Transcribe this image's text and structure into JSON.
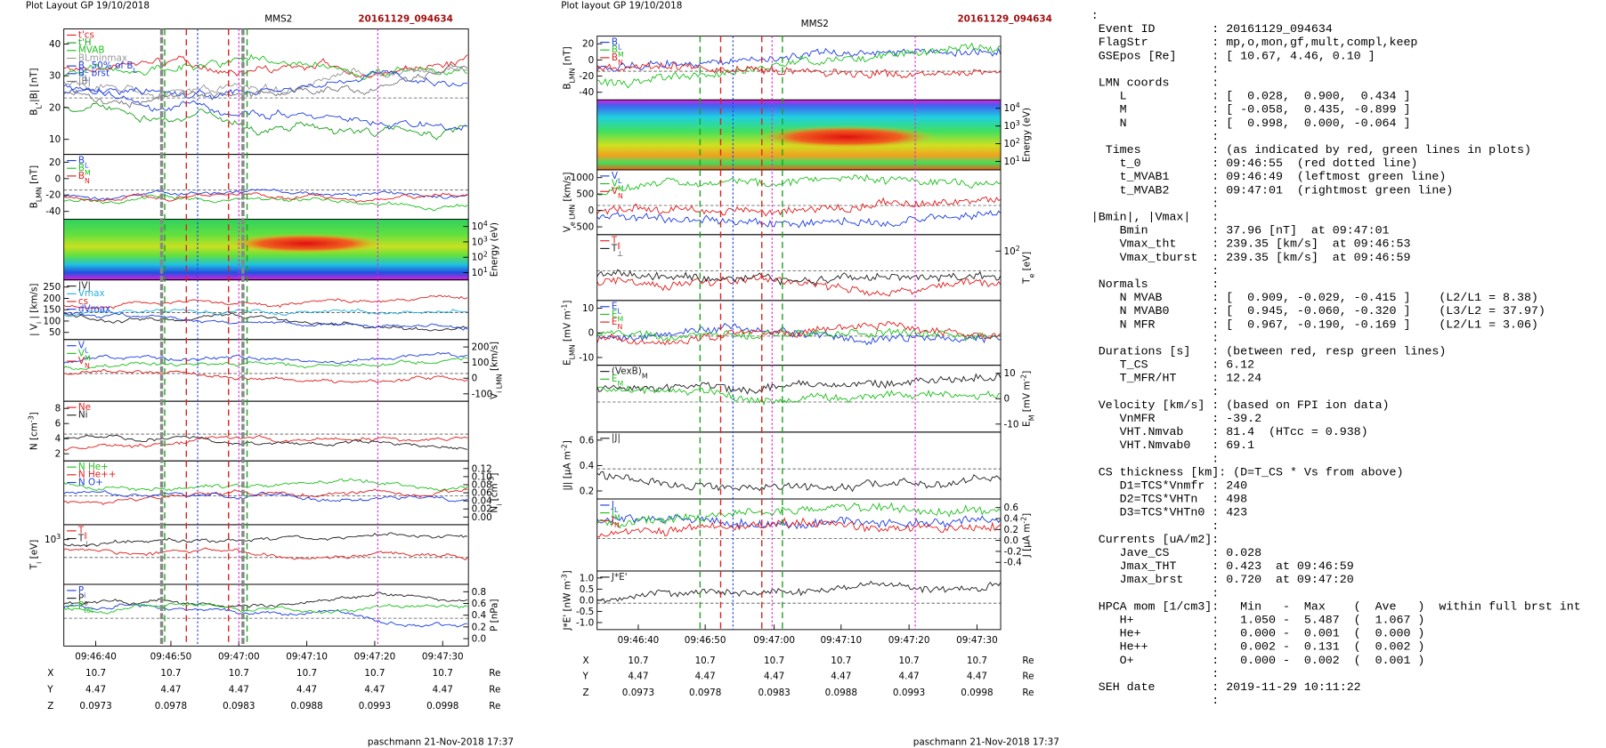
{
  "left": {
    "header": "Plot Layout GP 19/10/2018",
    "title": "MMS2",
    "event": "20161129_094634",
    "panels": [
      {
        "label": [
          "B",
          {
            "sub": "L"
          },
          ",|B| [nT]"
        ],
        "side": "left",
        "ticks": [
          "40",
          "30",
          "20",
          "10"
        ],
        "legend": [
          {
            "text": [
              "t'cs"
            ],
            "color": "#e02020"
          },
          {
            "text": [
              "t'H"
            ],
            "color": "#20a020"
          },
          {
            "text": [
              "MVAB"
            ],
            "color": "#20c020"
          },
          {
            "text": [
              "BLminmax"
            ],
            "color": "#999999"
          },
          {
            "text": [
              "B",
              {
                "sub": "L"
              },
              " 50% of B",
              {
                "sub": "L"
              }
            ],
            "color": "#2040e0"
          },
          {
            "text": [
              "B",
              {
                "sub": "L"
              },
              " brst"
            ],
            "color": "#2040e0"
          },
          {
            "text": [
              "|B|"
            ],
            "color": "#777777"
          }
        ]
      },
      {
        "label": [
          "B",
          {
            "sub": "LMN"
          },
          " [nT]"
        ],
        "side": "left",
        "ticks": [
          "20",
          "0",
          "-20",
          "-40"
        ],
        "legend": [
          {
            "text": [
              "B",
              {
                "sub": "L"
              }
            ],
            "color": "#2040e0"
          },
          {
            "text": [
              "B",
              {
                "sub": "M"
              }
            ],
            "color": "#20c020"
          },
          {
            "text": [
              "B",
              {
                "sub": "N"
              }
            ],
            "color": "#e02020"
          }
        ]
      },
      {
        "label": [
          "Energy (eV)"
        ],
        "side": "right",
        "kind": "spectrogram",
        "ticks": [
          [
            "10",
            {
              "sup": "4"
            }
          ],
          [
            "10",
            {
              "sup": "3"
            }
          ],
          [
            "10",
            {
              "sup": "2"
            }
          ],
          [
            "10",
            {
              "sup": "1"
            }
          ]
        ],
        "legend": []
      },
      {
        "label": [
          "| V",
          {
            "sub": "i"
          },
          " | [km/s]"
        ],
        "side": "left",
        "ticks": [
          "250",
          "200",
          "150",
          "100",
          "50"
        ],
        "legend": [
          {
            "text": [
              "|V|"
            ],
            "color": "#222222"
          },
          {
            "text": [
              "Vmax"
            ],
            "color": "#20b0e0"
          },
          {
            "text": [
              "cs"
            ],
            "color": "#e02020"
          },
          {
            "text": [
              "dVmax"
            ],
            "color": "#2040e0"
          }
        ]
      },
      {
        "label": [
          "V",
          {
            "sub": "i LMN"
          },
          " [km/s]"
        ],
        "side": "right",
        "ticks": [
          "200",
          "100",
          "0",
          "-100"
        ],
        "legend": [
          {
            "text": [
              "V",
              {
                "sub": "L"
              }
            ],
            "color": "#2040e0"
          },
          {
            "text": [
              "V",
              {
                "sub": "M"
              }
            ],
            "color": "#20c020"
          },
          {
            "text": [
              "V",
              {
                "sub": "N"
              }
            ],
            "color": "#e02020"
          }
        ]
      },
      {
        "label": [
          "N [cm",
          {
            "sup": "-3"
          },
          "]"
        ],
        "side": "left",
        "ticks": [
          "8",
          "6",
          "4",
          "2"
        ],
        "legend": [
          {
            "text": [
              "Ne"
            ],
            "color": "#e02020"
          },
          {
            "text": [
              "Ni"
            ],
            "color": "#222222"
          }
        ]
      },
      {
        "label": [
          "N",
          {
            "sub": "i"
          },
          " [cm",
          {
            "sup": "-3"
          },
          "]"
        ],
        "side": "right",
        "ticks": [
          "0.12",
          "0.10",
          "0.08",
          "0.06",
          "0.04",
          "0.02",
          "0.00"
        ],
        "legend": [
          {
            "text": [
              "N  He+"
            ],
            "color": "#20c020"
          },
          {
            "text": [
              "N  He++"
            ],
            "color": "#e02020"
          },
          {
            "text": [
              "N  O+"
            ],
            "color": "#2040e0"
          }
        ]
      },
      {
        "label": [
          "T",
          {
            "sub": "i"
          },
          " [eV]"
        ],
        "side": "left",
        "ticks": [
          [
            "10",
            {
              "sup": "3"
            }
          ]
        ],
        "legend": [
          {
            "text": [
              "T",
              {
                "sub": "∥"
              }
            ],
            "color": "#e02020"
          },
          {
            "text": [
              "T",
              {
                "sub": "⊥"
              }
            ],
            "color": "#222222"
          }
        ]
      },
      {
        "label": [
          "P [nPa]"
        ],
        "side": "right",
        "ticks": [
          "0.8",
          "0.6",
          "0.4",
          "0.2",
          "0.0"
        ],
        "legend": [
          {
            "text": [
              "P",
              {
                "sub": "i"
              }
            ],
            "color": "#2040e0"
          },
          {
            "text": [
              "P",
              {
                "sub": "e"
              }
            ],
            "color": "#222222"
          },
          {
            "text": [
              "P",
              {
                "sub": "tot"
              }
            ],
            "color": "#20c020"
          }
        ]
      }
    ],
    "xticks": [
      "09:46:40",
      "09:46:50",
      "09:47:00",
      "09:47:10",
      "09:47:20",
      "09:47:30"
    ],
    "position": [
      {
        "name": "X",
        "values": [
          "10.7",
          "10.7",
          "10.7",
          "10.7",
          "10.7",
          "10.7"
        ],
        "unit": "Re"
      },
      {
        "name": "Y",
        "values": [
          "4.47",
          "4.47",
          "4.47",
          "4.47",
          "4.47",
          "4.47"
        ],
        "unit": "Re"
      },
      {
        "name": "Z",
        "values": [
          "0.0973",
          "0.0978",
          "0.0983",
          "0.0988",
          "0.0993",
          "0.0998"
        ],
        "unit": "Re"
      }
    ],
    "footer": "paschmann 21-Nov-2018 17:37"
  },
  "middle": {
    "header": "Plot layout GP 19/10/2018",
    "title": "MMS2",
    "event": "20161129_094634",
    "panels": [
      {
        "label": [
          "B",
          {
            "sub": "LMN"
          },
          " [nT]"
        ],
        "side": "left",
        "ticks": [
          "20",
          "0",
          "-20",
          "-40"
        ],
        "legend": [
          {
            "text": [
              "B",
              {
                "sub": "L"
              }
            ],
            "color": "#2040e0"
          },
          {
            "text": [
              "B",
              {
                "sub": "M"
              }
            ],
            "color": "#20c020"
          },
          {
            "text": [
              "B",
              {
                "sub": "N"
              }
            ],
            "color": "#e02020"
          }
        ]
      },
      {
        "label": [
          "Energy (eV)"
        ],
        "side": "right",
        "kind": "spectrogram",
        "ticks": [
          [
            "10",
            {
              "sup": "4"
            }
          ],
          [
            "10",
            {
              "sup": "3"
            }
          ],
          [
            "10",
            {
              "sup": "2"
            }
          ],
          [
            "10",
            {
              "sup": "1"
            }
          ]
        ],
        "legend": []
      },
      {
        "label": [
          "V",
          {
            "sub": "e LMN"
          },
          " [km/s]"
        ],
        "side": "left",
        "ticks": [
          "1000",
          "500",
          "0",
          "-500"
        ],
        "legend": [
          {
            "text": [
              "V",
              {
                "sub": "L"
              }
            ],
            "color": "#2040e0"
          },
          {
            "text": [
              "V",
              {
                "sub": "M"
              }
            ],
            "color": "#20c020"
          },
          {
            "text": [
              "V",
              {
                "sub": "N"
              }
            ],
            "color": "#e02020"
          }
        ]
      },
      {
        "label": [
          "T",
          {
            "sub": "e"
          },
          " [eV]"
        ],
        "side": "right",
        "ticks": [
          [
            "10",
            {
              "sup": "2"
            }
          ]
        ],
        "legend": [
          {
            "text": [
              "T",
              {
                "sub": "∥"
              }
            ],
            "color": "#e02020"
          },
          {
            "text": [
              "T",
              {
                "sub": "⊥"
              }
            ],
            "color": "#222222"
          }
        ]
      },
      {
        "label": [
          "E",
          {
            "sub": "LMN"
          },
          " [mV m",
          {
            "sup": "-1"
          },
          "]"
        ],
        "side": "left",
        "ticks": [
          "10",
          "0",
          "-10"
        ],
        "legend": [
          {
            "text": [
              "E",
              {
                "sub": "L"
              }
            ],
            "color": "#2040e0"
          },
          {
            "text": [
              "E",
              {
                "sub": "M"
              }
            ],
            "color": "#20c020"
          },
          {
            "text": [
              "E",
              {
                "sub": "N"
              }
            ],
            "color": "#e02020"
          }
        ]
      },
      {
        "label": [
          "E",
          {
            "sub": "M"
          },
          " [mV m",
          {
            "sup": "-2"
          },
          "]"
        ],
        "side": "right",
        "ticks": [
          "10",
          "0",
          "-10"
        ],
        "legend": [
          {
            "text": [
              "(VexB)",
              {
                "sub": "M"
              }
            ],
            "color": "#222222"
          },
          {
            "text": [
              "E",
              {
                "sub": "M"
              }
            ],
            "color": "#20c020"
          }
        ]
      },
      {
        "label": [
          "|J| [μA m",
          {
            "sup": "-2"
          },
          "]"
        ],
        "side": "left",
        "ticks": [
          "0.6",
          "0.4",
          "0.2"
        ],
        "legend": [
          {
            "text": [
              "|J|"
            ],
            "color": "#222222"
          }
        ]
      },
      {
        "label": [
          "J [μA m",
          {
            "sup": "-2"
          },
          "]"
        ],
        "side": "right",
        "ticks": [
          "0.6",
          "0.4",
          "0.2",
          "0.0",
          "-0.2",
          "-0.4"
        ],
        "legend": [
          {
            "text": [
              "J",
              {
                "sub": "L"
              }
            ],
            "color": "#2040e0"
          },
          {
            "text": [
              "J",
              {
                "sub": "M"
              }
            ],
            "color": "#20c020"
          },
          {
            "text": [
              "J",
              {
                "sub": "N"
              }
            ],
            "color": "#e02020"
          }
        ]
      },
      {
        "label": [
          "J*E' [nW m",
          {
            "sup": "-3"
          },
          "]"
        ],
        "side": "left",
        "ticks": [
          "1.0",
          "0.5",
          "0.0",
          "-0.5",
          "-1.0"
        ],
        "legend": [
          {
            "text": [
              "J*E'"
            ],
            "color": "#222222"
          }
        ]
      }
    ],
    "xticks": [
      "09:46:40",
      "09:46:50",
      "09:47:00",
      "09:47:10",
      "09:47:20",
      "09:47:30"
    ],
    "position": [
      {
        "name": "X",
        "values": [
          "10.7",
          "10.7",
          "10.7",
          "10.7",
          "10.7",
          "10.7"
        ],
        "unit": "Re"
      },
      {
        "name": "Y",
        "values": [
          "4.47",
          "4.47",
          "4.47",
          "4.47",
          "4.47",
          "4.47"
        ],
        "unit": "Re"
      },
      {
        "name": "Z",
        "values": [
          "0.0973",
          "0.0978",
          "0.0983",
          "0.0988",
          "0.0993",
          "0.0998"
        ],
        "unit": "Re"
      }
    ],
    "footer": "paschmann 21-Nov-2018 17:37"
  },
  "summary": {
    "lines": [
      ":",
      " Event ID        : 20161129_094634",
      " FlagStr         : mp,o,mon,gf,mult,compl,keep",
      " GSEpos [Re]     : [ 10.67, 4.46, 0.10 ]",
      "                 :",
      " LMN coords      :",
      "    L            : [  0.028,  0.900,  0.434 ]",
      "    M            : [ -0.058,  0.435, -0.899 ]",
      "    N            : [  0.998,  0.000, -0.064 ]",
      "                 :",
      "  Times          : (as indicated by red, green lines in plots)",
      "    t_0          : 09:46:55  (red dotted line)",
      "    t_MVAB1      : 09:46:49  (leftmost green line)",
      "    t_MVAB2      : 09:47:01  (rightmost green line)",
      "                 :",
      "|Bmin|, |Vmax|   :",
      "    Bmin         : 37.96 [nT]  at 09:47:01",
      "    Vmax_tht     : 239.35 [km/s]  at 09:46:53",
      "    Vmax_tburst  : 239.35 [km/s]  at 09:46:59",
      "                 :",
      " Normals         :",
      "    N MVAB       : [  0.909, -0.029, -0.415 ]    (L2/L1 = 8.38)",
      "    N MVAB0      : [  0.945, -0.060, -0.320 ]    (L3/L2 = 37.97)",
      "    N MFR        : [  0.967, -0.190, -0.169 ]    (L2/L1 = 3.06)",
      "                 :",
      " Durations [s]   : (between red, resp green lines)",
      "    T_CS         : 6.12",
      "    T_MFR/HT     : 12.24",
      "                 :",
      " Velocity [km/s] : (based on FPI ion data)",
      "    VnMFR        : -39.2",
      "    VHT.Nmvab    : 81.4  (HTcc = 0.938)",
      "    VHT.Nmvab0   : 69.1",
      "                 :",
      " CS thickness [km]: (D=T_CS * Vs from above)",
      "    D1=TCS*Vnmfr : 240",
      "    D2=TCS*VHTn  : 498",
      "    D3=TCS*VHTn0 : 423",
      "                 :",
      " Currents [uA/m2]:",
      "    Jave_CS      : 0.028",
      "    Jmax_THT     : 0.423  at 09:46:59",
      "    Jmax_brst    : 0.720  at 09:47:20",
      "                 :",
      " HPCA mom [1/cm3]:   Min   -  Max    (  Ave   )  within full brst int",
      "    H+           :   1.050 -  5.487  (  1.067 )",
      "    He+          :   0.000 -  0.001  (  0.000 )",
      "    He++         :   0.002 -  0.131  (  0.002 )",
      "    O+           :   0.000 -  0.002  (  0.001 )",
      "                 :",
      " SEH date        : 2019-11-29 10:11:22",
      "                 :"
    ]
  }
}
